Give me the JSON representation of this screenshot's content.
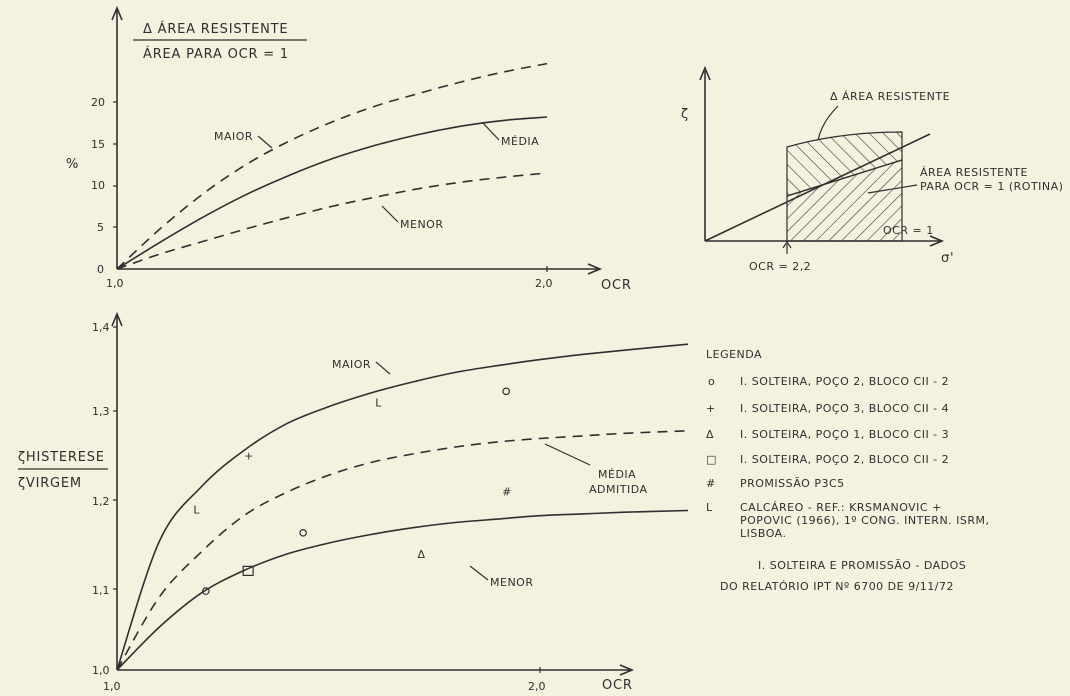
{
  "colors": {
    "background": "#f4f1df",
    "ink": "#2f2f2f",
    "hatch": "#3a3a3a"
  },
  "chart_data": [
    {
      "type": "line",
      "id": "top-chart",
      "title_numerator": "Δ ÁREA RESISTENTE",
      "title_denominator": "ÁREA PARA OCR = 1",
      "ylabel": "%",
      "xlabel": "OCR",
      "xlim": [
        1.0,
        2.0
      ],
      "ylim": [
        0,
        25
      ],
      "x_ticks": [
        "1,0",
        "2,0"
      ],
      "y_ticks": [
        "0",
        "5",
        "10",
        "15",
        "20"
      ],
      "x": [
        1.0,
        1.1,
        1.2,
        1.3,
        1.4,
        1.5,
        1.6,
        1.7,
        1.8,
        1.9,
        2.0
      ],
      "series": [
        {
          "name": "MAIOR",
          "style": "dashed",
          "values": [
            0,
            4.8,
            9.0,
            12.5,
            15.3,
            17.6,
            19.5,
            21.0,
            22.4,
            23.6,
            24.6
          ]
        },
        {
          "name": "MÉDIA",
          "style": "solid",
          "values": [
            0,
            3.2,
            6.2,
            8.9,
            11.2,
            13.2,
            14.8,
            16.1,
            17.1,
            17.8,
            18.2
          ]
        },
        {
          "name": "MENOR",
          "style": "dashed",
          "values": [
            0,
            1.8,
            3.3,
            4.8,
            6.2,
            7.5,
            8.6,
            9.6,
            10.4,
            11.0,
            11.5
          ]
        }
      ]
    },
    {
      "type": "scatter",
      "id": "bottom-chart",
      "ylabel_numerator": "ζHISTERESE",
      "ylabel_denominator": "ζVIRGEM",
      "xlabel": "OCR",
      "xlim": [
        1.0,
        2.35
      ],
      "ylim": [
        1.0,
        1.4
      ],
      "x_ticks": [
        "1,0",
        "2,0"
      ],
      "y_ticks": [
        "1,0",
        "1,1",
        "1,2",
        "1,3",
        "1,4"
      ],
      "x": [
        1.0,
        1.1,
        1.2,
        1.3,
        1.4,
        1.5,
        1.6,
        1.7,
        1.8,
        1.9,
        2.0,
        2.1,
        2.2,
        2.35
      ],
      "series": [
        {
          "name": "MAIOR",
          "style": "solid",
          "values": [
            1.0,
            1.15,
            1.214,
            1.256,
            1.287,
            1.307,
            1.323,
            1.336,
            1.347,
            1.355,
            1.362,
            1.368,
            1.373,
            1.38
          ]
        },
        {
          "name": "MÉDIA ADMITIDA",
          "style": "dashed",
          "values": [
            1.0,
            1.085,
            1.138,
            1.18,
            1.207,
            1.227,
            1.242,
            1.252,
            1.26,
            1.266,
            1.27,
            1.273,
            1.276,
            1.279
          ]
        },
        {
          "name": "MENOR",
          "style": "solid",
          "values": [
            1.0,
            1.05,
            1.09,
            1.116,
            1.135,
            1.148,
            1.158,
            1.166,
            1.172,
            1.176,
            1.18,
            1.182,
            1.184,
            1.186
          ]
        }
      ],
      "points": [
        {
          "marker": "o",
          "x": 1.92,
          "y": 1.325
        },
        {
          "marker": "o",
          "x": 1.21,
          "y": 1.092
        },
        {
          "marker": "o",
          "x": 1.44,
          "y": 1.16
        },
        {
          "marker": "+",
          "x": 1.31,
          "y": 1.25
        },
        {
          "marker": "Δ",
          "x": 1.72,
          "y": 1.135
        },
        {
          "marker": "□",
          "x": 1.31,
          "y": 1.115
        },
        {
          "marker": "#",
          "x": 1.92,
          "y": 1.208
        },
        {
          "marker": "L",
          "x": 1.19,
          "y": 1.187
        },
        {
          "marker": "L",
          "x": 1.62,
          "y": 1.312
        }
      ]
    },
    {
      "type": "diagram",
      "id": "inset-diagram",
      "ylabel": "ζ",
      "xlabel": "σ'",
      "label_delta": "Δ ÁREA RESISTENTE",
      "label_area_1": "ÁREA RESISTENTE",
      "label_area_2": "PARA OCR = 1 (ROTINA)",
      "label_ocr1": "OCR = 1",
      "label_ocr22": "OCR = 2,2"
    }
  ],
  "legend": {
    "title": "LEGENDA",
    "items": [
      {
        "symbol": "o",
        "text": "I. SOLTEIRA, POÇO 2, BLOCO CII - 2"
      },
      {
        "symbol": "+",
        "text": "I. SOLTEIRA, POÇO 3, BLOCO CII - 4"
      },
      {
        "symbol": "Δ",
        "text": "I. SOLTEIRA, POÇO 1, BLOCO CII - 3"
      },
      {
        "symbol": "□",
        "text": "I. SOLTEIRA, POÇO 2, BLOCO CII - 2"
      },
      {
        "symbol": "#",
        "text": "PROMISSÃO P3C5"
      },
      {
        "symbol": "L",
        "text": "CALCÁREO - REF.: KRSMANOVIC + POPOVIC (1966), 1º CONG. INTERN. ISRM, LISBOA."
      }
    ],
    "note_line1": "I. SOLTEIRA E PROMISSÃO - DADOS",
    "note_line2": "DO RELATÓRIO IPT Nº 6700 DE 9/11/72"
  }
}
